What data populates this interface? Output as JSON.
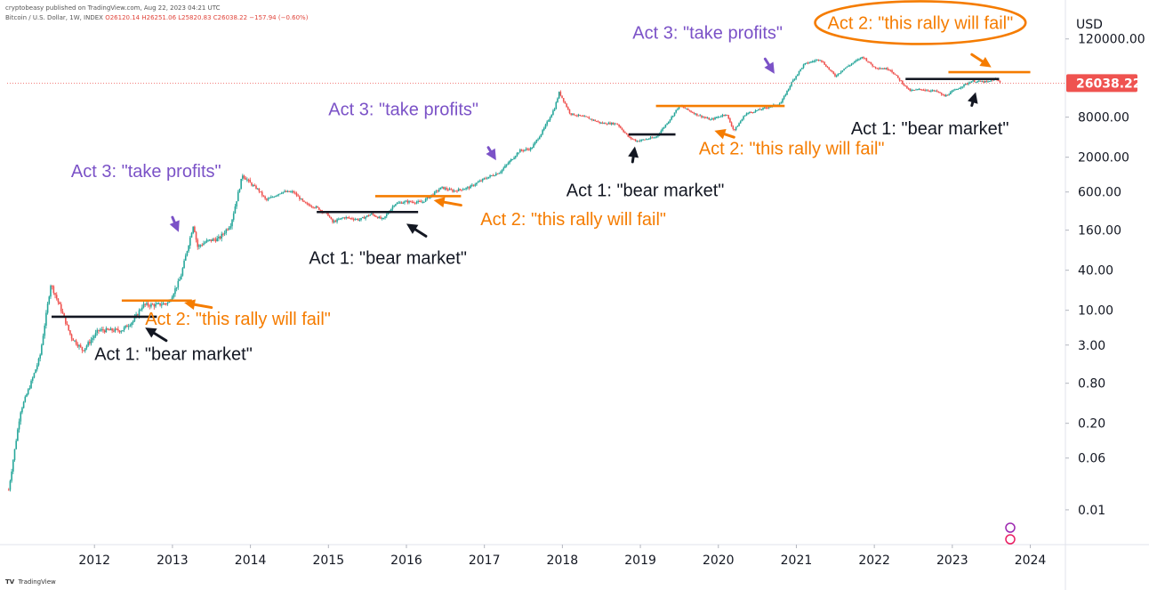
{
  "header": {
    "publisher": "cryptobeasy published on TradingView.com, Aug 22, 2023 04:21 UTC",
    "symbol": "Bitcoin / U.S. Dollar, 1W, INDEX",
    "ohlc": "O26120.14 H26251.06 L25820.83 C26038.22 −157.94 (−0.60%)"
  },
  "footer": {
    "logo": "TV",
    "brand": "TradingView"
  },
  "chart_data": {
    "type": "candlestick",
    "interval": "1W",
    "currency_label": "USD",
    "scale": "log",
    "last_price": 26038.22,
    "last_price_label": "26038.22",
    "colors": {
      "up": "#26a69a",
      "down": "#ef5350",
      "orange": "#f57c00",
      "purple": "#7b52c7",
      "black": "#131722",
      "price_tag": "#ef5350"
    },
    "y_ticks": [
      "120000.00",
      "8000.00",
      "2000.00",
      "600.00",
      "160.00",
      "40.00",
      "10.00",
      "3.00",
      "0.80",
      "0.20",
      "0.06",
      "0.01"
    ],
    "x_ticks": [
      "2012",
      "2013",
      "2014",
      "2015",
      "2016",
      "2017",
      "2018",
      "2019",
      "2020",
      "2021",
      "2022",
      "2023",
      "2024"
    ],
    "price_path": [
      [
        2010.9,
        0.02
      ],
      [
        2011.05,
        0.3
      ],
      [
        2011.2,
        0.9
      ],
      [
        2011.3,
        2
      ],
      [
        2011.44,
        25
      ],
      [
        2011.55,
        12
      ],
      [
        2011.7,
        4
      ],
      [
        2011.85,
        2.5
      ],
      [
        2011.95,
        3.5
      ],
      [
        2012.05,
        5
      ],
      [
        2012.2,
        5
      ],
      [
        2012.35,
        5
      ],
      [
        2012.5,
        7
      ],
      [
        2012.62,
        12
      ],
      [
        2012.8,
        12
      ],
      [
        2012.95,
        13
      ],
      [
        2013.1,
        30
      ],
      [
        2013.27,
        200
      ],
      [
        2013.32,
        90
      ],
      [
        2013.45,
        110
      ],
      [
        2013.6,
        120
      ],
      [
        2013.75,
        200
      ],
      [
        2013.9,
        1100
      ],
      [
        2014.0,
        800
      ],
      [
        2014.1,
        650
      ],
      [
        2014.2,
        450
      ],
      [
        2014.4,
        600
      ],
      [
        2014.55,
        600
      ],
      [
        2014.7,
        400
      ],
      [
        2014.85,
        350
      ],
      [
        2015.0,
        270
      ],
      [
        2015.05,
        210
      ],
      [
        2015.2,
        250
      ],
      [
        2015.4,
        230
      ],
      [
        2015.55,
        280
      ],
      [
        2015.7,
        230
      ],
      [
        2015.85,
        400
      ],
      [
        2016.0,
        430
      ],
      [
        2016.2,
        420
      ],
      [
        2016.45,
        700
      ],
      [
        2016.6,
        620
      ],
      [
        2016.8,
        700
      ],
      [
        2017.0,
        950
      ],
      [
        2017.2,
        1200
      ],
      [
        2017.45,
        2500
      ],
      [
        2017.6,
        2700
      ],
      [
        2017.75,
        5000
      ],
      [
        2017.9,
        11000
      ],
      [
        2017.96,
        19000
      ],
      [
        2018.1,
        9000
      ],
      [
        2018.3,
        8000
      ],
      [
        2018.5,
        6500
      ],
      [
        2018.7,
        6400
      ],
      [
        2018.85,
        4000
      ],
      [
        2018.95,
        3500
      ],
      [
        2019.2,
        4000
      ],
      [
        2019.4,
        8000
      ],
      [
        2019.5,
        12000
      ],
      [
        2019.7,
        9000
      ],
      [
        2019.9,
        7300
      ],
      [
        2020.1,
        9000
      ],
      [
        2020.2,
        5000
      ],
      [
        2020.35,
        9000
      ],
      [
        2020.6,
        11000
      ],
      [
        2020.8,
        13000
      ],
      [
        2020.95,
        28000
      ],
      [
        2021.1,
        50000
      ],
      [
        2021.3,
        60000
      ],
      [
        2021.5,
        33000
      ],
      [
        2021.6,
        42000
      ],
      [
        2021.85,
        65000
      ],
      [
        2022.0,
        45000
      ],
      [
        2022.2,
        42000
      ],
      [
        2022.45,
        20000
      ],
      [
        2022.6,
        21000
      ],
      [
        2022.8,
        19500
      ],
      [
        2022.9,
        16500
      ],
      [
        2023.05,
        21000
      ],
      [
        2023.25,
        28000
      ],
      [
        2023.45,
        27000
      ],
      [
        2023.55,
        30000
      ],
      [
        2023.63,
        26038
      ]
    ],
    "levels": [
      {
        "color": "black",
        "x0": 2011.45,
        "x1": 2012.8,
        "y": 8
      },
      {
        "color": "orange",
        "x0": 2012.35,
        "x1": 2013.25,
        "y": 14
      },
      {
        "color": "black",
        "x0": 2014.85,
        "x1": 2016.15,
        "y": 300
      },
      {
        "color": "orange",
        "x0": 2015.6,
        "x1": 2016.7,
        "y": 520
      },
      {
        "color": "black",
        "x0": 2018.85,
        "x1": 2019.45,
        "y": 4400
      },
      {
        "color": "orange",
        "x0": 2019.2,
        "x1": 2020.85,
        "y": 11800
      },
      {
        "color": "black",
        "x0": 2022.4,
        "x1": 2023.6,
        "y": 30000
      },
      {
        "color": "orange",
        "x0": 2022.95,
        "x1": 2024.0,
        "y": 38000
      }
    ],
    "annotations": [
      {
        "text": "Act 3: \"take profits\"",
        "color": "purple",
        "x": 2011.7,
        "y": 1000,
        "arrow": [
          [
            2013.0,
            250
          ],
          [
            2013.08,
            150
          ]
        ]
      },
      {
        "text": "Act 2: \"this rally will fail\"",
        "color": "orange",
        "x": 2012.65,
        "y": 6,
        "arrow": [
          [
            2013.5,
            11
          ],
          [
            2013.15,
            13
          ]
        ]
      },
      {
        "text": "Act 1: \"bear market\"",
        "color": "black",
        "x": 2012.0,
        "y": 1.8,
        "arrow": [
          [
            2012.92,
            3.5
          ],
          [
            2012.65,
            5.5
          ]
        ]
      },
      {
        "text": "Act 3: \"take profits\"",
        "color": "purple",
        "x": 2015.0,
        "y": 8500,
        "arrow": [
          [
            2017.05,
            2800
          ],
          [
            2017.15,
            1800
          ]
        ]
      },
      {
        "text": "Act 2: \"this rally will fail\"",
        "color": "orange",
        "x": 2016.95,
        "y": 190,
        "arrow": [
          [
            2016.7,
            380
          ],
          [
            2016.35,
            450
          ]
        ]
      },
      {
        "text": "Act 1: \"bear market\"",
        "color": "black",
        "x": 2014.75,
        "y": 50,
        "arrow": [
          [
            2016.25,
            130
          ],
          [
            2016.0,
            200
          ]
        ]
      },
      {
        "text": "Act 3: \"take profits\"",
        "color": "purple",
        "x": 2018.9,
        "y": 120000,
        "arrow": [
          [
            2020.6,
            60000
          ],
          [
            2020.72,
            36000
          ]
        ]
      },
      {
        "text": "Act 2: \"this rally will fail\"",
        "color": "orange",
        "x": 2019.75,
        "y": 2200,
        "arrow": [
          [
            2020.2,
            4000
          ],
          [
            2019.95,
            5000
          ]
        ]
      },
      {
        "text": "Act 1: \"bear market\"",
        "color": "black",
        "x": 2018.05,
        "y": 520,
        "arrow": [
          [
            2018.9,
            1700
          ],
          [
            2018.93,
            2900
          ]
        ]
      },
      {
        "text": "Act 2: \"this rally will fail\"",
        "color": "orange",
        "x": 2021.4,
        "y": 170000,
        "arrow": [
          [
            2023.25,
            70000
          ],
          [
            2023.5,
            45000
          ]
        ],
        "circled": true
      },
      {
        "text": "Act 1: \"bear market\"",
        "color": "black",
        "x": 2021.7,
        "y": 4400,
        "arrow": [
          [
            2023.25,
            12000
          ],
          [
            2023.3,
            19000
          ]
        ]
      }
    ]
  }
}
